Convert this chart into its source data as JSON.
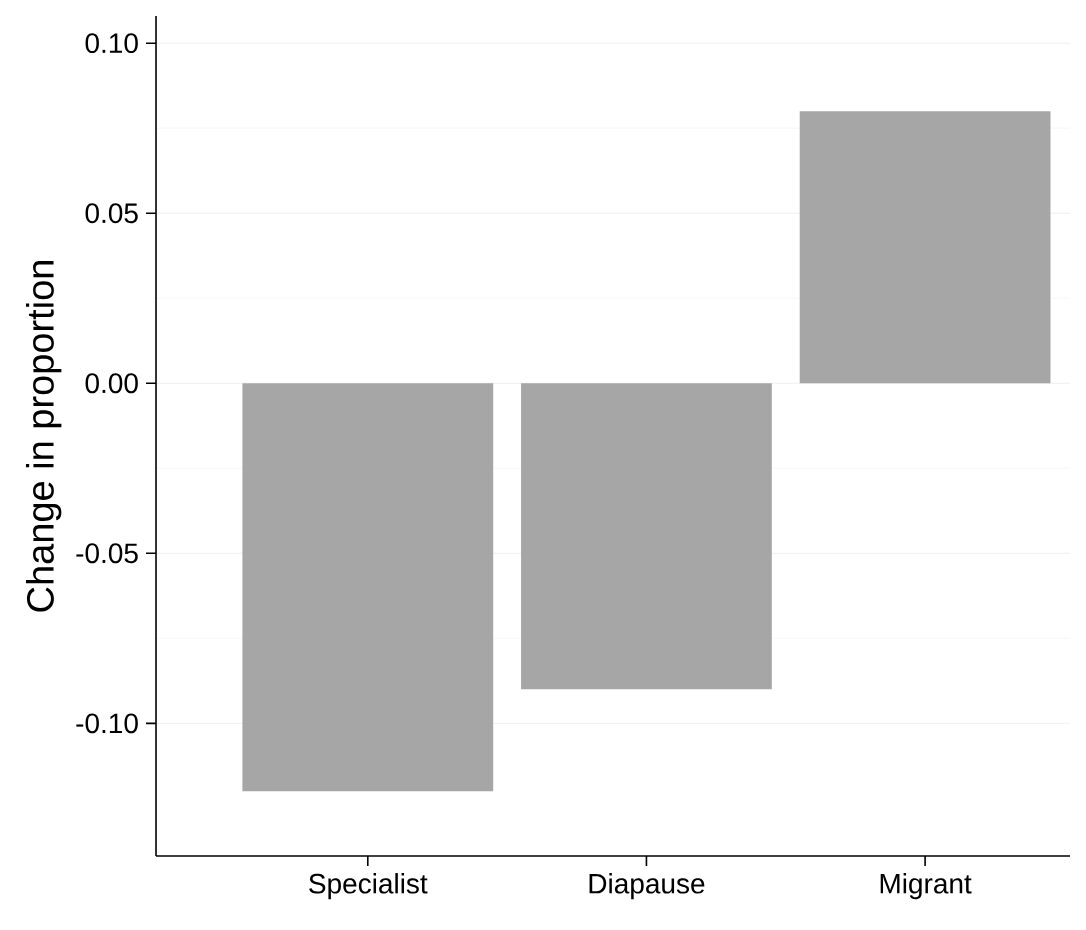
{
  "chart_data": {
    "type": "bar",
    "ylabel": "Change in proportion",
    "categories": [
      "Specialist",
      "Diapause",
      "Migrant"
    ],
    "values": [
      -0.12,
      -0.09,
      0.08
    ],
    "color": "#a6a6a6",
    "ylim": [
      -0.139,
      0.108
    ],
    "yticks": [
      {
        "value": -0.1,
        "label": "-0.10"
      },
      {
        "value": -0.05,
        "label": "-0.05"
      },
      {
        "value": 0,
        "label": "0.00"
      },
      {
        "value": 0.05,
        "label": "0.05"
      },
      {
        "value": 0.1,
        "label": "0.10"
      }
    ],
    "grid": "y"
  }
}
